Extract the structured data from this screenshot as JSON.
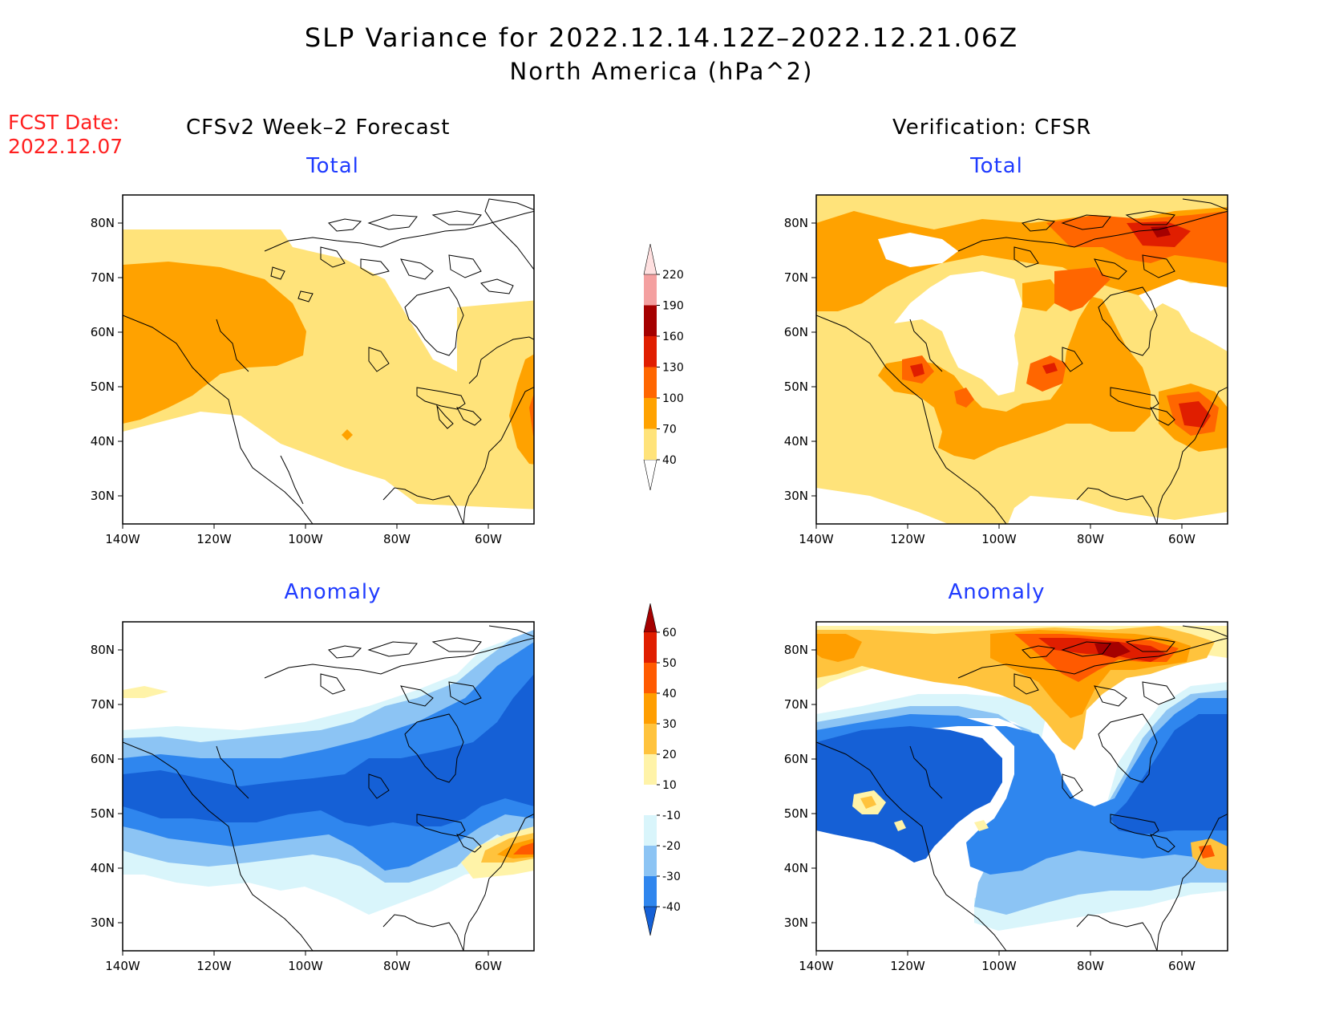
{
  "title": {
    "line1": "SLP Variance for 2022.12.14.12Z–2022.12.21.06Z",
    "line2": "North America (hPa^2)"
  },
  "fcst_date": {
    "label": "FCST Date:",
    "value": "2022.12.07"
  },
  "columns": {
    "left": "CFSv2 Week–2 Forecast",
    "right": "Verification: CFSR"
  },
  "rows": {
    "top": "Total",
    "bottom": "Anomaly"
  },
  "axes": {
    "lat_labels": [
      "80N",
      "70N",
      "60N",
      "50N",
      "40N",
      "30N"
    ],
    "lon_labels": [
      "140W",
      "120W",
      "100W",
      "80W",
      "60W"
    ],
    "lon_range": [
      -140,
      -50
    ],
    "lat_range": [
      25,
      85
    ]
  },
  "colorbars": {
    "total": {
      "levels": [
        "40",
        "70",
        "100",
        "130",
        "160",
        "190",
        "220"
      ],
      "colors": [
        "#ffffff",
        "#ffe37a",
        "#ffa200",
        "#ff6600",
        "#e01e00",
        "#a50000",
        "#f4a0a0",
        "#ffe0e0"
      ]
    },
    "anomaly": {
      "levels": [
        "-40",
        "-30",
        "-20",
        "-10",
        "10",
        "20",
        "30",
        "40",
        "50",
        "60"
      ],
      "colors": [
        "#1560d6",
        "#2f86ee",
        "#8cc4f4",
        "#d9f5fb",
        "#ffffff",
        "#fff3a8",
        "#ffc33d",
        "#ff9e00",
        "#ff5a00",
        "#e01e00",
        "#a50000"
      ]
    }
  },
  "palette": {
    "land_line": "#000000",
    "title_blue": "#1f3bff",
    "fcst_red": "#ff2020"
  }
}
